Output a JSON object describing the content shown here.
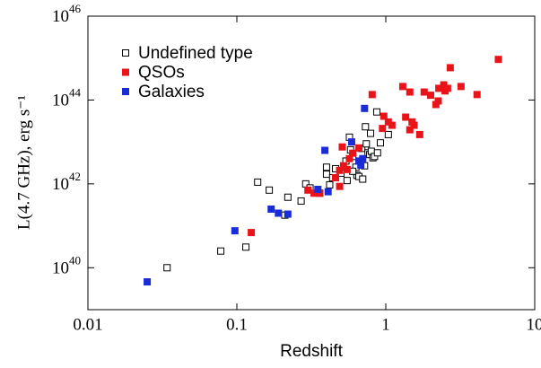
{
  "chart_data": {
    "type": "scatter",
    "xlabel": "Redshift",
    "ylabel": "L(4.7 GHz), erg s⁻¹",
    "xscale": "log",
    "yscale": "log",
    "xlim": [
      0.01,
      10
    ],
    "ylim": [
      1e+39,
      1e+46
    ],
    "xticks": [
      0.01,
      0.1,
      1,
      10
    ],
    "yticks": [
      {
        "value": 1e+40,
        "label": "10",
        "exponent": "40"
      },
      {
        "value": 1e+42,
        "label": "10",
        "exponent": "42"
      },
      {
        "value": 1e+44,
        "label": "10",
        "exponent": "44"
      },
      {
        "value": 1e+46,
        "label": "10",
        "exponent": "46"
      }
    ],
    "legend": "upper left",
    "series": [
      {
        "name": "Undefined type",
        "color": "#000000",
        "marker": "open-square",
        "x": [
          0.034,
          0.078,
          0.115,
          0.138,
          0.165,
          0.22,
          0.21,
          0.27,
          0.29,
          0.31,
          0.36,
          0.4,
          0.4,
          0.42,
          0.44,
          0.46,
          0.5,
          0.54,
          0.57,
          0.58,
          0.6,
          0.63,
          0.64,
          0.66,
          0.66,
          0.69,
          0.7,
          0.72,
          0.74,
          0.76,
          0.78,
          0.8,
          0.79,
          0.82,
          0.84,
          0.87,
          0.73,
          0.92,
          1.04,
          0.88,
          0.6,
          0.55
        ],
        "y": [
          1e+40,
          2.5e+40,
          3.1e+40,
          1.1e+42,
          7.1e+41,
          4.8e+41,
          1.8e+41,
          3.9e+41,
          1e+42,
          8e+41,
          6e+41,
          2.5e+42,
          1.7e+42,
          9.5e+41,
          1.4e+42,
          2.3e+42,
          1.8e+42,
          3.5e+42,
          1.3e+43,
          6.5e+42,
          4.5e+42,
          2.5e+42,
          1.6e+42,
          3.5e+42,
          1.5e+42,
          7e+42,
          1.3e+42,
          2.7e+42,
          9e+42,
          5.5e+42,
          5e+42,
          6e+42,
          1.6e+43,
          4.2e+42,
          4.5e+42,
          5.2e+43,
          2.3e+43,
          9.5e+42,
          1.5e+43,
          5.5e+42,
          2e+42,
          1.2e+42
        ]
      },
      {
        "name": "QSOs",
        "color": "#e8141a",
        "marker": "square",
        "x": [
          0.125,
          0.3,
          0.33,
          0.36,
          0.46,
          0.49,
          0.49,
          0.51,
          0.52,
          0.55,
          0.57,
          0.6,
          0.66,
          0.81,
          0.97,
          1.04,
          0.95,
          1.1,
          1.3,
          1.36,
          1.45,
          1.45,
          1.55,
          1.69,
          1.81,
          2.0,
          2.17,
          2.25,
          2.27,
          2.45,
          2.5,
          2.6,
          2.71,
          3.2,
          4.1,
          5.7,
          1.5
        ],
        "y": [
          6.9e+40,
          7.1e+41,
          6e+41,
          6e+41,
          1.4e+42,
          8.7e+41,
          2.1e+42,
          7.6e+42,
          2.7e+42,
          2.2e+42,
          4e+42,
          5.4e+42,
          7.2e+42,
          1.35e+44,
          4.1e+43,
          3e+43,
          2.1e+43,
          2.5e+43,
          2.1e+44,
          3.9e+43,
          1.55e+44,
          1.95e+43,
          2.5e+43,
          1.5e+43,
          1.55e+44,
          1.3e+44,
          7.8e+43,
          9.5e+43,
          1.9e+44,
          2.3e+44,
          1.65e+44,
          1.9e+44,
          5.9e+44,
          2.1e+44,
          1.35e+44,
          9.3e+44,
          3e+43
        ]
      },
      {
        "name": "Galaxies",
        "color": "#1a2bd8",
        "marker": "square",
        "x": [
          0.025,
          0.097,
          0.17,
          0.19,
          0.22,
          0.35,
          0.39,
          0.41,
          0.59,
          0.66,
          0.72,
          0.68,
          0.7
        ],
        "y": [
          4.6e+39,
          7.6e+40,
          2.5e+41,
          2e+41,
          1.9e+41,
          7.4e+41,
          6.3e+42,
          6.5e+41,
          1e+43,
          3.5e+42,
          6.3e+43,
          2.8e+42,
          4e+42
        ]
      }
    ]
  }
}
